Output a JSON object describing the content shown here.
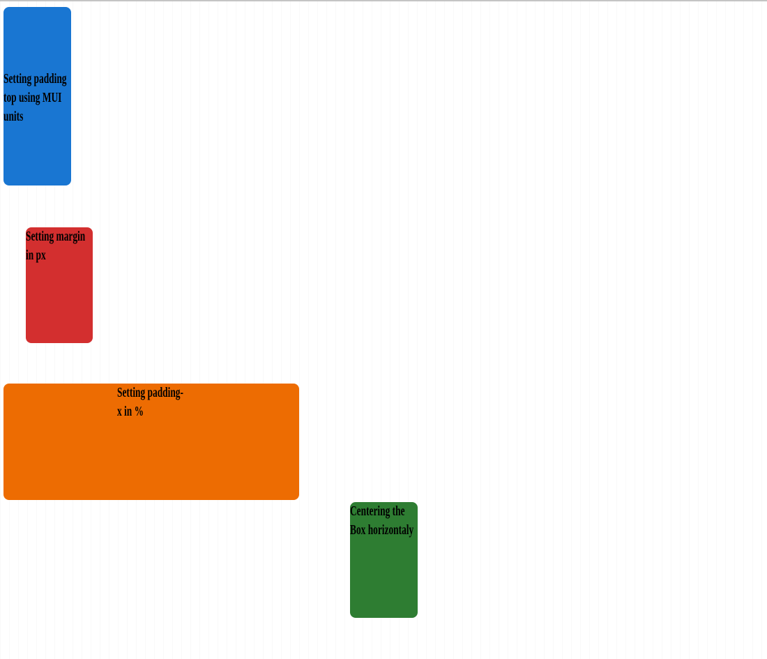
{
  "page": {
    "background_color": "#ffffff",
    "top_divider_color": "#c4c4c4",
    "text_color": "#000000"
  },
  "boxes": [
    {
      "name": "padding-top-mui-units",
      "label": "Setting padding\ntop using MUI\nunits",
      "color": "#1976d2"
    },
    {
      "name": "margin-in-px",
      "label": "Setting margin\nin px",
      "color": "#d32f2f"
    },
    {
      "name": "padding-x-percent",
      "label": "Setting padding-\nx in %",
      "color": "#ed6c02"
    },
    {
      "name": "centering-horizontally",
      "label": "Centering the\nBox horizontaly",
      "color": "#2e7d32"
    }
  ]
}
